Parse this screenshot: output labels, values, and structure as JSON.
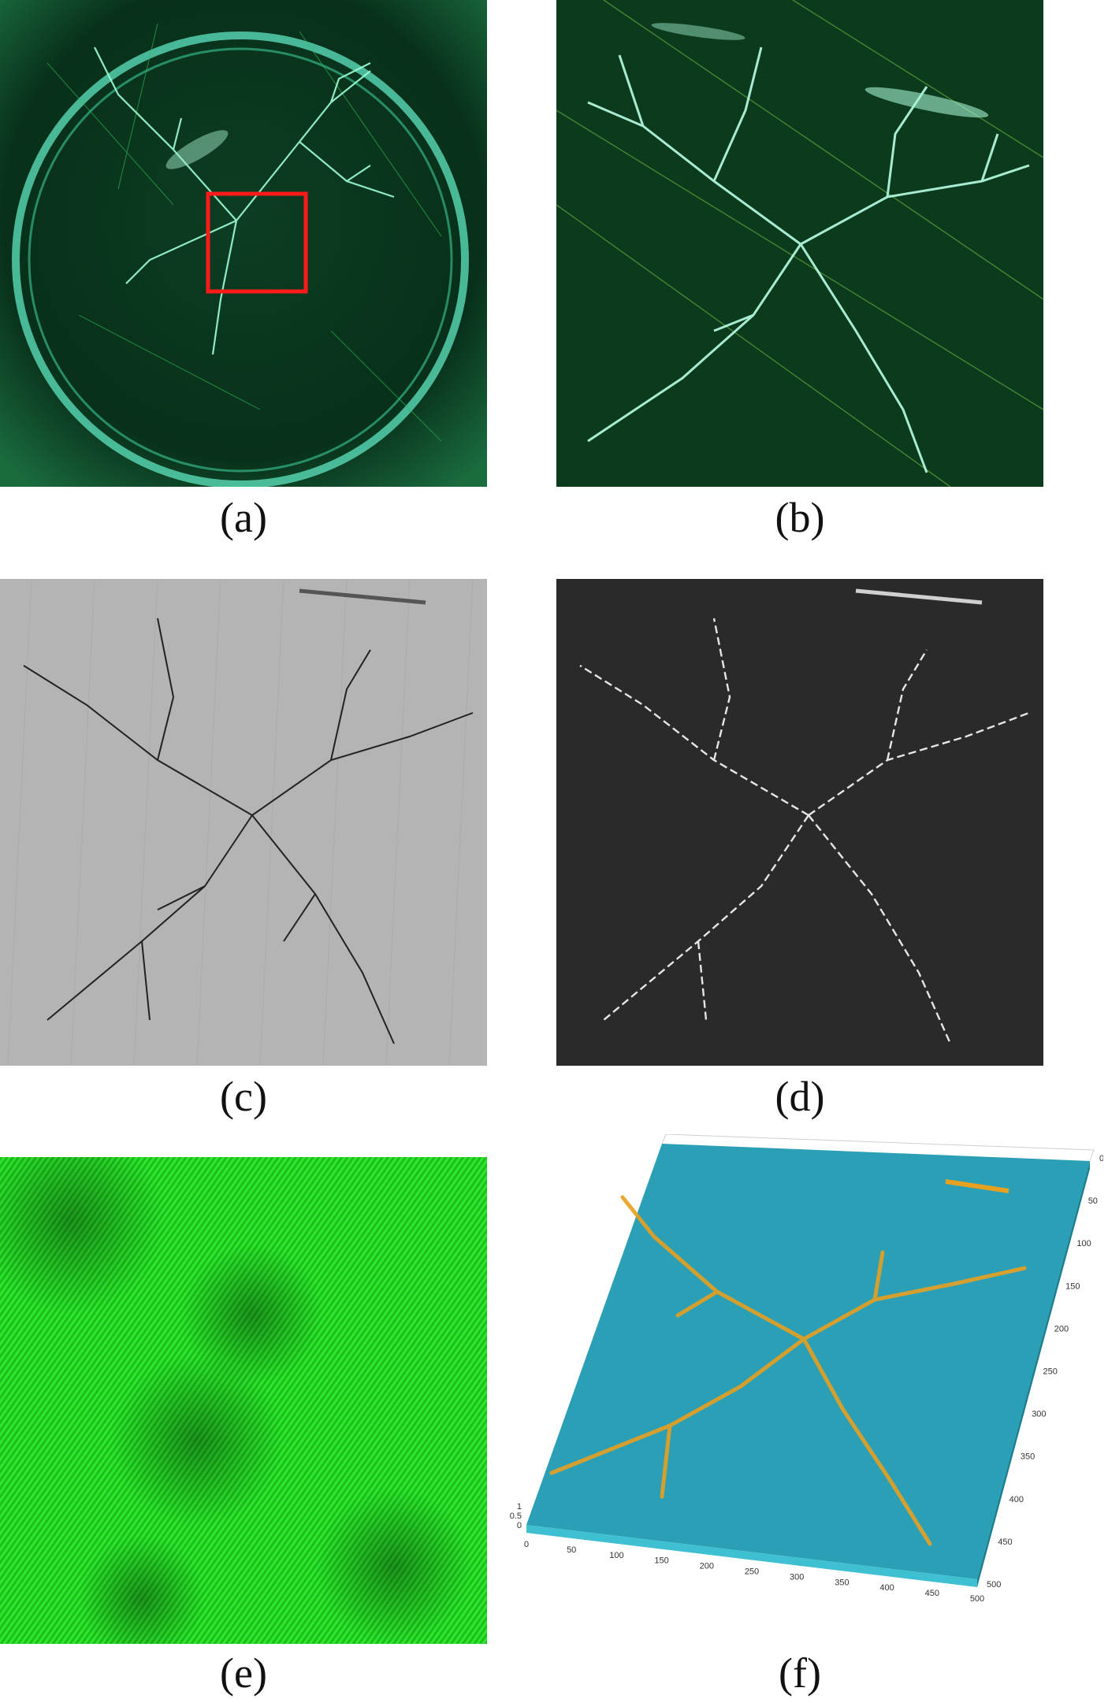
{
  "captions": {
    "a": "(a)",
    "b": "(b)",
    "c": "(c)",
    "d": "(d)",
    "e": "(e)",
    "f": "(f)"
  },
  "panel_f_axes": {
    "x_ticks": [
      "0",
      "50",
      "100",
      "150",
      "200",
      "250",
      "300",
      "350",
      "400",
      "450",
      "500"
    ],
    "y_ticks": [
      "0",
      "50",
      "100",
      "150",
      "200",
      "250",
      "300",
      "350",
      "400",
      "450",
      "500"
    ],
    "z_ticks": [
      "0",
      "0.5",
      "1"
    ]
  },
  "colors": {
    "green_dark": "#08301a",
    "green_bright": "#3cff3c",
    "tree_cyan": "#9effd8",
    "highlight_box": "#ff1a1a",
    "gray_bg": "#b4b4b4",
    "dark_bg": "#2a2a2a",
    "surface_teal": "#2a9fb5",
    "peak_orange": "#e8a020"
  }
}
